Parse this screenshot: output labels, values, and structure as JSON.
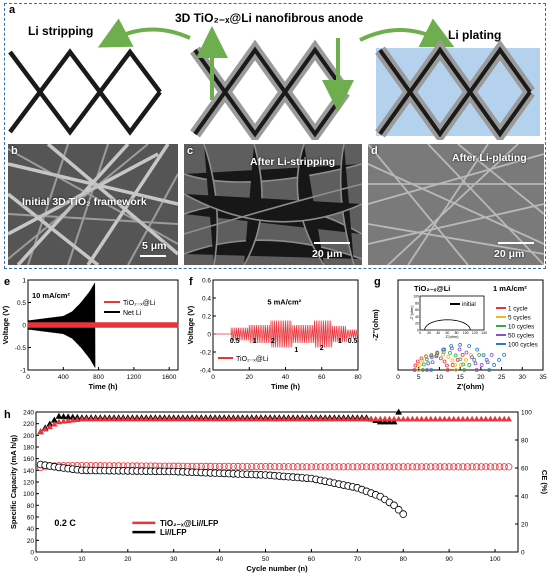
{
  "panel_a": {
    "label": "a",
    "title": "3D TiO₂₋ₓ@Li nanofibrous anode",
    "left_label": "Li stripping",
    "right_label": "Li plating"
  },
  "panel_b": {
    "label": "b",
    "caption": "Initial 3D TiO₂ framework",
    "scale": "5 μm"
  },
  "panel_c": {
    "label": "c",
    "caption": "After Li-stripping",
    "scale": "20 μm"
  },
  "panel_d": {
    "label": "d",
    "caption": "After Li-plating",
    "scale": "20 μm"
  },
  "panel_e": {
    "label": "e",
    "current": "10 mA/cm²"
  },
  "panel_f": {
    "label": "f",
    "current": "5 mA/cm²"
  },
  "panel_g": {
    "label": "g",
    "title": "TiO₂₋ₓ@Li",
    "current": "1 mA/cm²"
  },
  "panel_h": {
    "label": "h",
    "rate": "0.2 C"
  },
  "colors": {
    "red": "#e8343c",
    "black": "#000000",
    "accent_blue": "#3a6ea8",
    "arrow_green": "#6fae4f"
  },
  "chart_data": [
    {
      "type": "line",
      "panel": "e",
      "xlabel": "Time (h)",
      "ylabel": "Voltage (V)",
      "xlim": [
        0,
        1700
      ],
      "ylim": [
        -1.0,
        1.0
      ],
      "xticks": [
        0,
        400,
        800,
        1200,
        1600
      ],
      "yticks": [
        -1.0,
        -0.5,
        0.0,
        0.5,
        1.0
      ],
      "series": [
        {
          "name": "TiO₂₋ₓ@Li",
          "color": "#e8343c",
          "amplitude_V": 0.06,
          "x_range": [
            0,
            1700
          ]
        },
        {
          "name": "Net Li",
          "color": "#000000",
          "x": [
            0,
            200,
            400,
            500,
            600,
            700,
            760
          ],
          "amplitude_V": [
            0.1,
            0.15,
            0.2,
            0.3,
            0.5,
            0.75,
            0.95
          ]
        }
      ]
    },
    {
      "type": "line",
      "panel": "f",
      "xlabel": "Time (h)",
      "ylabel": "Voltage (V)",
      "xlim": [
        0,
        80
      ],
      "ylim": [
        -0.4,
        0.6
      ],
      "xticks": [
        0,
        20,
        40,
        60,
        80
      ],
      "yticks": [
        -0.4,
        -0.2,
        0.0,
        0.2,
        0.4,
        0.6
      ],
      "step_labels": [
        "0.5",
        "1",
        "2",
        "1",
        "2",
        "1",
        "0.5"
      ],
      "series": [
        {
          "name": "TiO₂₋ₓ@Li",
          "color": "#e8343c",
          "segments_h": [
            [
              10,
              20,
              0.07
            ],
            [
              20,
              32,
              0.1
            ],
            [
              32,
              44,
              0.15
            ],
            [
              44,
              56,
              0.1
            ],
            [
              56,
              66,
              0.15
            ],
            [
              66,
              74,
              0.09
            ],
            [
              74,
              80,
              0.05
            ]
          ]
        }
      ]
    },
    {
      "type": "scatter",
      "panel": "g",
      "xlabel": "Z'(ohm)",
      "ylabel": "-Z''(ohm)",
      "xlim": [
        0,
        35
      ],
      "ylim": [
        0,
        25
      ],
      "xticks": [
        0,
        5,
        10,
        15,
        20,
        25,
        30,
        35
      ],
      "series": [
        {
          "name": "1 cycle",
          "color": "#e8343c",
          "start": 4,
          "diameter": 8
        },
        {
          "name": "5 cycles",
          "color": "#f2b81a",
          "start": 5,
          "diameter": 9
        },
        {
          "name": "10 cycles",
          "color": "#38a84a",
          "start": 6,
          "diameter": 10
        },
        {
          "name": "50 cycles",
          "color": "#8a50c8",
          "start": 7,
          "diameter": 12
        },
        {
          "name": "100 cycles",
          "color": "#2a7fc2",
          "start": 8,
          "diameter": 14
        }
      ],
      "inset": {
        "legend": "initial",
        "ylabel": "-Z''(ohm)",
        "xlabel": "Z'(ohm)",
        "xlim": [
          0,
          140
        ],
        "ylim": [
          0,
          100
        ],
        "yticks": [
          0,
          20,
          40,
          60,
          80,
          100
        ],
        "xticks": [
          0,
          20,
          40,
          60,
          80,
          100,
          120,
          140
        ]
      }
    },
    {
      "type": "scatter",
      "panel": "h",
      "xlabel": "Cycle number (n)",
      "ylabel": "Specific Capacity (mA h/g)",
      "ylabel_right": "CE (%)",
      "xlim": [
        0,
        105
      ],
      "ylim": [
        0,
        240
      ],
      "ylim_right": [
        0,
        100
      ],
      "xticks": [
        0,
        10,
        20,
        30,
        40,
        50,
        60,
        70,
        80,
        90,
        100
      ],
      "yticks": [
        0,
        20,
        40,
        60,
        80,
        100,
        120,
        140,
        160,
        180,
        200,
        220,
        240
      ],
      "yticks_right": [
        0,
        20,
        40,
        60,
        80,
        100
      ],
      "series": [
        {
          "name": "TiO₂₋ₓ@Li//LFP",
          "color": "#e8343c",
          "capacity": {
            "x": [
              1,
              2,
              3,
              5,
              10,
              30,
              60,
              100,
              103
            ],
            "y": [
              145,
              146,
              147,
              148,
              148,
              147,
              146,
              146,
              146
            ]
          },
          "ce": {
            "x": [
              1,
              5,
              10,
              100,
              103
            ],
            "y": [
              86,
              93,
              95,
              95,
              95
            ]
          }
        },
        {
          "name": "Li//LFP",
          "color": "#000000",
          "capacity": {
            "x": [
              1,
              5,
              10,
              30,
              50,
              60,
              70,
              75,
              78,
              80
            ],
            "y": [
              150,
              145,
              140,
              138,
              132,
              126,
              110,
              95,
              80,
              65
            ]
          },
          "ce": {
            "x": [
              1,
              5,
              10,
              50,
              72,
              75,
              78,
              79
            ],
            "y": [
              86,
              97,
              96,
              96,
              96,
              93,
              93,
              100
            ]
          }
        }
      ]
    }
  ]
}
